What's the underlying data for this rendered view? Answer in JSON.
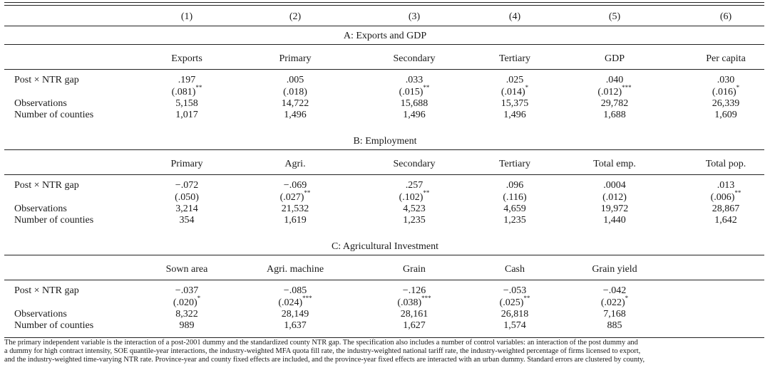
{
  "column_numbers": [
    "(1)",
    "(2)",
    "(3)",
    "(4)",
    "(5)",
    "(6)"
  ],
  "panels": [
    {
      "title": "A: Exports and GDP",
      "headers": [
        "Exports",
        "Primary",
        "Secondary",
        "Tertiary",
        "GDP",
        "Per capita"
      ],
      "coef_label": "Post × NTR gap",
      "coefs": [
        ".197",
        ".005",
        ".033",
        ".025",
        ".040",
        ".030"
      ],
      "ses": [
        "(.081)",
        "(.018)",
        "(.015)",
        "(.014)",
        "(.012)",
        "(.016)"
      ],
      "stars": [
        "**",
        "",
        "**",
        "*",
        "***",
        "*"
      ],
      "obs_label": "Observations",
      "obs": [
        "5,158",
        "14,722",
        "15,688",
        "15,375",
        "29,782",
        "26,339"
      ],
      "n_label": "Number of counties",
      "n": [
        "1,017",
        "1,496",
        "1,496",
        "1,496",
        "1,688",
        "1,609"
      ]
    },
    {
      "title": "B: Employment",
      "headers": [
        "Primary",
        "Agri.",
        "Secondary",
        "Tertiary",
        "Total emp.",
        "Total pop."
      ],
      "coef_label": "Post × NTR gap",
      "coefs": [
        "−.072",
        "−.069",
        ".257",
        ".096",
        ".0004",
        ".013"
      ],
      "ses": [
        "(.050)",
        "(.027)",
        "(.102)",
        "(.116)",
        "(.012)",
        "(.006)"
      ],
      "stars": [
        "",
        "**",
        "**",
        "",
        "",
        "**"
      ],
      "obs_label": "Observations",
      "obs": [
        "3,214",
        "21,532",
        "4,523",
        "4,659",
        "19,972",
        "28,867"
      ],
      "n_label": "Number of counties",
      "n": [
        "354",
        "1,619",
        "1,235",
        "1,235",
        "1,440",
        "1,642"
      ]
    },
    {
      "title": "C: Agricultural Investment",
      "headers": [
        "Sown area",
        "Agri. machine",
        "Grain",
        "Cash",
        "Grain yield",
        ""
      ],
      "coef_label": "Post × NTR gap",
      "coefs": [
        "−.037",
        "−.085",
        "−.126",
        "−.053",
        "−.042",
        ""
      ],
      "ses": [
        "(.020)",
        "(.024)",
        "(.038)",
        "(.025)",
        "(.022)",
        ""
      ],
      "stars": [
        "*",
        "***",
        "***",
        "**",
        "*",
        ""
      ],
      "obs_label": "Observations",
      "obs": [
        "8,322",
        "28,149",
        "28,161",
        "26,818",
        "7,168",
        ""
      ],
      "n_label": "Number of counties",
      "n": [
        "989",
        "1,637",
        "1,627",
        "1,574",
        "885",
        ""
      ]
    }
  ],
  "footnote": [
    "The primary independent variable is the interaction of a post-2001 dummy and the standardized county NTR gap. The specification also includes a number of control variables: an interaction of the post dummy and",
    "a dummy for high contract intensity, SOE quantile-year interactions, the industry-weighted MFA quota fill rate, the industry-weighted national tariff rate, the industry-weighted percentage of firms licensed to export,",
    "and the industry-weighted time-varying NTR rate. Province-year and county fixed effects are included, and the province-year fixed effects are interacted with an urban dummy. Standard errors are clustered by county,"
  ]
}
